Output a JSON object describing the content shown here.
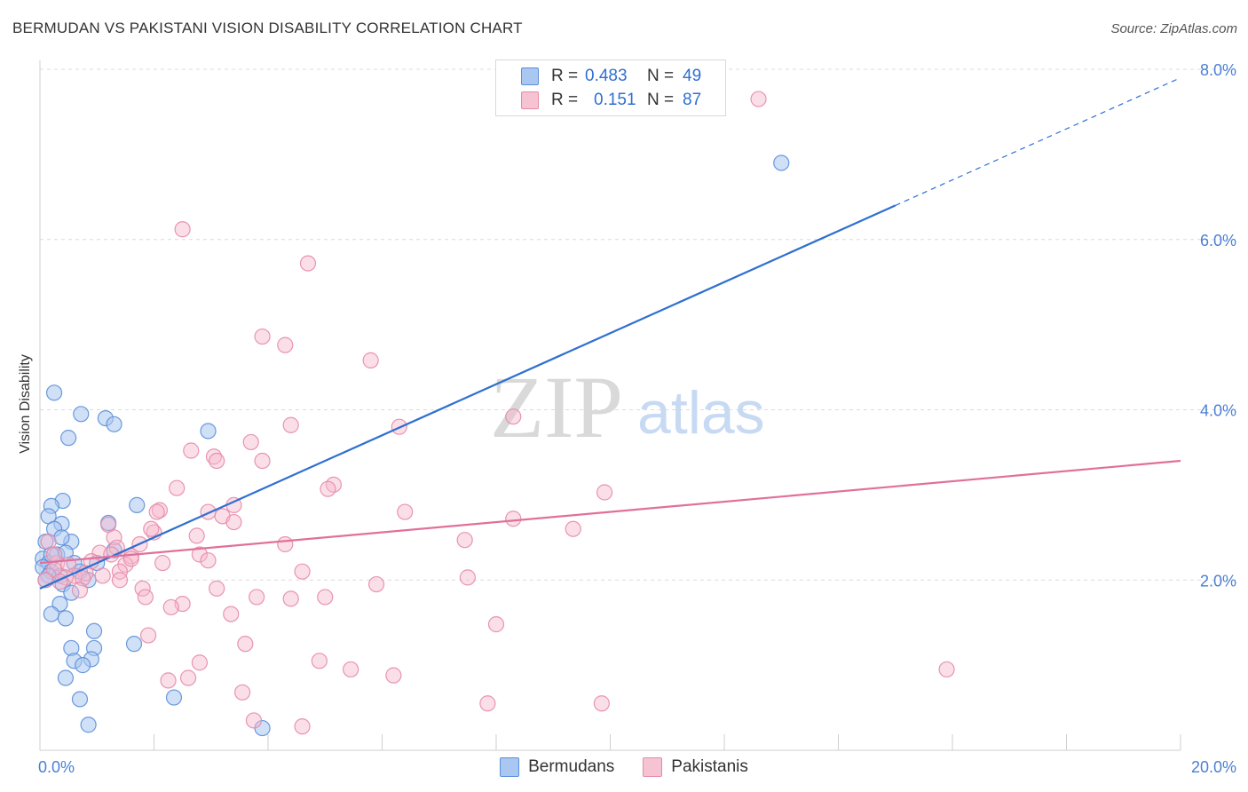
{
  "header": {
    "title": "BERMUDAN VS PAKISTANI VISION DISABILITY CORRELATION CHART",
    "source": "Source: ZipAtlas.com"
  },
  "watermark": {
    "zip": "ZIP",
    "atlas": "atlas"
  },
  "legend": {
    "rows": [
      {
        "r_label": "R =",
        "r_value": "0.483",
        "n_label": "N =",
        "n_value": "49"
      },
      {
        "r_label": "R =",
        "r_value": "0.151",
        "n_label": "N =",
        "n_value": "87"
      }
    ]
  },
  "bottom_legend": {
    "bermudans": "Bermudans",
    "pakistanis": "Pakistanis"
  },
  "colors": {
    "bermudans_fill": "#a9c7f0",
    "bermudans_stroke": "#5b8fd9",
    "bermudans_line": "#2f6fd1",
    "pakistanis_fill": "#f6b8cb",
    "pakistanis_stroke": "#e58aa8",
    "pakistanis_line": "#e0709a",
    "tick_label": "#4a7fd4",
    "grid": "#dcdcdc"
  },
  "chart_data": {
    "type": "scatter",
    "title": "BERMUDAN VS PAKISTANI VISION DISABILITY CORRELATION CHART",
    "xlabel": "",
    "ylabel": "Vision Disability",
    "xlim": [
      0,
      20
    ],
    "ylim": [
      0,
      8
    ],
    "x_tick_labels": [
      {
        "v": 0,
        "label": "0.0%"
      },
      {
        "v": 20,
        "label": "20.0%"
      }
    ],
    "y_tick_labels": [
      {
        "v": 2,
        "label": "2.0%"
      },
      {
        "v": 4,
        "label": "4.0%"
      },
      {
        "v": 6,
        "label": "6.0%"
      },
      {
        "v": 8,
        "label": "8.0%"
      }
    ],
    "grid": true,
    "legend_position": "top-center",
    "series": [
      {
        "name": "Bermudans",
        "R": 0.483,
        "N": 49,
        "trend": {
          "x0": 0.0,
          "y0": 1.9,
          "x1": 15.0,
          "y1": 6.4,
          "dashed_to_x": 20.0,
          "dashed_to_y": 7.9
        },
        "points": [
          [
            0.25,
            4.2
          ],
          [
            0.72,
            3.95
          ],
          [
            1.15,
            3.9
          ],
          [
            1.3,
            3.83
          ],
          [
            0.5,
            3.67
          ],
          [
            0.4,
            2.93
          ],
          [
            0.2,
            2.87
          ],
          [
            0.15,
            2.75
          ],
          [
            0.38,
            2.66
          ],
          [
            1.7,
            2.88
          ],
          [
            1.2,
            2.67
          ],
          [
            0.25,
            2.6
          ],
          [
            0.55,
            2.45
          ],
          [
            0.38,
            2.5
          ],
          [
            0.1,
            2.45
          ],
          [
            0.05,
            2.25
          ],
          [
            0.15,
            2.2
          ],
          [
            0.3,
            2.3
          ],
          [
            0.45,
            2.32
          ],
          [
            1.3,
            2.35
          ],
          [
            0.6,
            2.2
          ],
          [
            0.05,
            2.15
          ],
          [
            0.2,
            2.1
          ],
          [
            0.35,
            2.05
          ],
          [
            0.7,
            2.1
          ],
          [
            0.15,
            2.05
          ],
          [
            1.0,
            2.2
          ],
          [
            0.85,
            2.0
          ],
          [
            0.4,
            1.95
          ],
          [
            0.35,
            1.72
          ],
          [
            0.55,
            1.85
          ],
          [
            0.2,
            1.6
          ],
          [
            0.45,
            1.55
          ],
          [
            0.95,
            1.4
          ],
          [
            1.65,
            1.25
          ],
          [
            0.55,
            1.2
          ],
          [
            0.95,
            1.2
          ],
          [
            0.6,
            1.05
          ],
          [
            0.9,
            1.07
          ],
          [
            0.75,
            1.0
          ],
          [
            0.45,
            0.85
          ],
          [
            0.7,
            0.6
          ],
          [
            2.35,
            0.62
          ],
          [
            0.85,
            0.3
          ],
          [
            3.9,
            0.26
          ],
          [
            2.95,
            3.75
          ],
          [
            13.0,
            6.9
          ],
          [
            0.2,
            2.3
          ],
          [
            0.1,
            2.0
          ]
        ]
      },
      {
        "name": "Pakistanis",
        "R": 0.151,
        "N": 87,
        "trend": {
          "x0": 0.0,
          "y0": 2.2,
          "x1": 20.0,
          "y1": 3.4
        },
        "points": [
          [
            12.6,
            7.65
          ],
          [
            2.5,
            6.12
          ],
          [
            4.7,
            5.72
          ],
          [
            3.9,
            4.86
          ],
          [
            4.3,
            4.76
          ],
          [
            5.8,
            4.58
          ],
          [
            8.3,
            3.92
          ],
          [
            4.4,
            3.82
          ],
          [
            6.3,
            3.8
          ],
          [
            3.7,
            3.62
          ],
          [
            2.65,
            3.52
          ],
          [
            3.05,
            3.45
          ],
          [
            3.9,
            3.4
          ],
          [
            3.1,
            3.4
          ],
          [
            5.15,
            3.12
          ],
          [
            5.05,
            3.07
          ],
          [
            2.4,
            3.08
          ],
          [
            9.9,
            3.03
          ],
          [
            3.4,
            2.88
          ],
          [
            2.95,
            2.8
          ],
          [
            6.4,
            2.8
          ],
          [
            2.1,
            2.82
          ],
          [
            2.05,
            2.8
          ],
          [
            3.2,
            2.75
          ],
          [
            8.3,
            2.72
          ],
          [
            1.2,
            2.65
          ],
          [
            2.0,
            2.56
          ],
          [
            9.35,
            2.6
          ],
          [
            1.3,
            2.5
          ],
          [
            2.75,
            2.52
          ],
          [
            7.45,
            2.47
          ],
          [
            1.75,
            2.42
          ],
          [
            4.3,
            2.42
          ],
          [
            0.15,
            2.45
          ],
          [
            1.35,
            2.38
          ],
          [
            2.8,
            2.3
          ],
          [
            1.05,
            2.32
          ],
          [
            1.6,
            2.28
          ],
          [
            0.3,
            2.2
          ],
          [
            0.9,
            2.22
          ],
          [
            0.5,
            2.18
          ],
          [
            1.5,
            2.18
          ],
          [
            0.25,
            2.12
          ],
          [
            0.8,
            2.08
          ],
          [
            1.4,
            2.1
          ],
          [
            0.6,
            2.05
          ],
          [
            0.45,
            2.03
          ],
          [
            0.75,
            2.02
          ],
          [
            1.1,
            2.05
          ],
          [
            1.4,
            2.0
          ],
          [
            2.15,
            2.2
          ],
          [
            0.1,
            2.0
          ],
          [
            0.35,
            1.98
          ],
          [
            4.6,
            2.1
          ],
          [
            7.5,
            2.03
          ],
          [
            0.7,
            1.88
          ],
          [
            1.8,
            1.9
          ],
          [
            3.1,
            1.9
          ],
          [
            1.85,
            1.8
          ],
          [
            3.8,
            1.8
          ],
          [
            4.4,
            1.78
          ],
          [
            5.0,
            1.8
          ],
          [
            5.9,
            1.95
          ],
          [
            2.5,
            1.72
          ],
          [
            2.3,
            1.68
          ],
          [
            3.35,
            1.6
          ],
          [
            8.0,
            1.48
          ],
          [
            1.9,
            1.35
          ],
          [
            3.6,
            1.25
          ],
          [
            4.9,
            1.05
          ],
          [
            2.8,
            1.03
          ],
          [
            5.45,
            0.95
          ],
          [
            15.9,
            0.95
          ],
          [
            6.2,
            0.88
          ],
          [
            2.6,
            0.85
          ],
          [
            2.25,
            0.82
          ],
          [
            3.55,
            0.68
          ],
          [
            7.85,
            0.55
          ],
          [
            9.85,
            0.55
          ],
          [
            3.75,
            0.35
          ],
          [
            4.6,
            0.28
          ],
          [
            1.25,
            2.3
          ],
          [
            0.25,
            2.3
          ],
          [
            1.6,
            2.25
          ],
          [
            3.4,
            2.68
          ],
          [
            2.95,
            2.23
          ],
          [
            1.95,
            2.6
          ]
        ]
      }
    ]
  }
}
